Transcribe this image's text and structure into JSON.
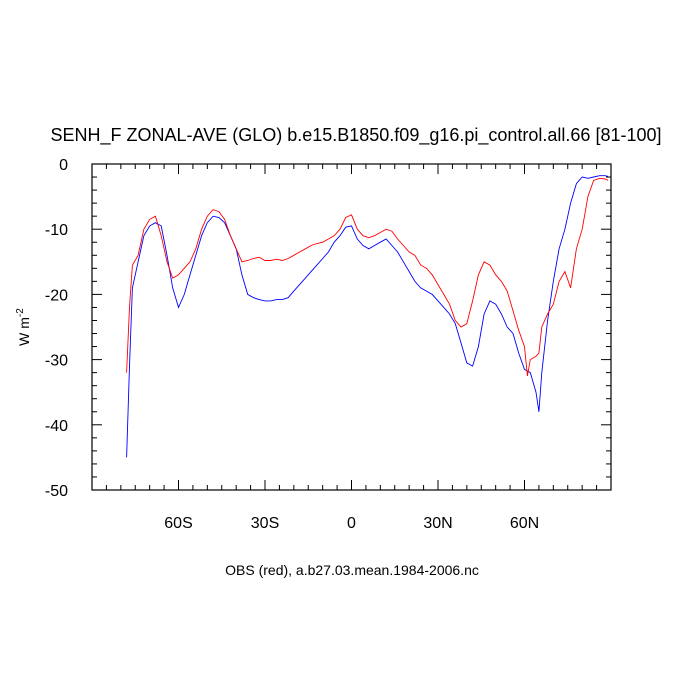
{
  "chart_data": {
    "type": "line",
    "title": "SENH_F ZONAL-AVE (GLO) b.e15.B1850.f09_g16.pi_control.all.66 [81-100]",
    "ylabel": "W m",
    "ylabel_superscript": "-2",
    "xlabel": "OBS (red), a.b27.03.mean.1984-2006.nc",
    "xlim": [
      -90,
      90
    ],
    "ylim": [
      -50,
      0
    ],
    "x_ticks": [
      {
        "value": -60,
        "label": "60S"
      },
      {
        "value": -30,
        "label": "30S"
      },
      {
        "value": 0,
        "label": "0"
      },
      {
        "value": 30,
        "label": "30N"
      },
      {
        "value": 60,
        "label": "60N"
      }
    ],
    "y_ticks": [
      {
        "value": 0,
        "label": "0"
      },
      {
        "value": -10,
        "label": "-10"
      },
      {
        "value": -20,
        "label": "-20"
      },
      {
        "value": -30,
        "label": "-30"
      },
      {
        "value": -40,
        "label": "-40"
      },
      {
        "value": -50,
        "label": "-50"
      }
    ],
    "grid": false,
    "series": [
      {
        "color": "#0000ff",
        "points": [
          [
            -78,
            -45
          ],
          [
            -77,
            -31
          ],
          [
            -76,
            -19
          ],
          [
            -74,
            -15
          ],
          [
            -72,
            -11
          ],
          [
            -70,
            -9.5
          ],
          [
            -68,
            -9
          ],
          [
            -66,
            -9.5
          ],
          [
            -64,
            -14
          ],
          [
            -62,
            -19
          ],
          [
            -60,
            -22
          ],
          [
            -58,
            -20
          ],
          [
            -56,
            -17
          ],
          [
            -54,
            -14
          ],
          [
            -52,
            -11
          ],
          [
            -50,
            -9
          ],
          [
            -48,
            -8
          ],
          [
            -46,
            -8.2
          ],
          [
            -44,
            -9
          ],
          [
            -42,
            -11
          ],
          [
            -40,
            -13
          ],
          [
            -38,
            -17
          ],
          [
            -36,
            -20
          ],
          [
            -34,
            -20.5
          ],
          [
            -32,
            -20.8
          ],
          [
            -30,
            -21
          ],
          [
            -28,
            -21
          ],
          [
            -26,
            -20.8
          ],
          [
            -24,
            -20.8
          ],
          [
            -22,
            -20.5
          ],
          [
            -20,
            -19.5
          ],
          [
            -18,
            -18.5
          ],
          [
            -16,
            -17.5
          ],
          [
            -14,
            -16.5
          ],
          [
            -12,
            -15.5
          ],
          [
            -10,
            -14.5
          ],
          [
            -8,
            -13.5
          ],
          [
            -6,
            -12
          ],
          [
            -4,
            -11
          ],
          [
            -2,
            -9.7
          ],
          [
            0,
            -9.5
          ],
          [
            2,
            -11.5
          ],
          [
            4,
            -12.5
          ],
          [
            6,
            -13
          ],
          [
            8,
            -12.5
          ],
          [
            10,
            -12
          ],
          [
            12,
            -11.5
          ],
          [
            14,
            -12.5
          ],
          [
            16,
            -13.5
          ],
          [
            18,
            -15
          ],
          [
            20,
            -16.5
          ],
          [
            22,
            -18
          ],
          [
            24,
            -19
          ],
          [
            26,
            -19.5
          ],
          [
            28,
            -20
          ],
          [
            30,
            -21
          ],
          [
            32,
            -22
          ],
          [
            34,
            -23
          ],
          [
            36,
            -24.5
          ],
          [
            38,
            -27.5
          ],
          [
            40,
            -30.5
          ],
          [
            42,
            -31
          ],
          [
            44,
            -28
          ],
          [
            46,
            -23
          ],
          [
            48,
            -21
          ],
          [
            50,
            -21.5
          ],
          [
            52,
            -23
          ],
          [
            54,
            -25
          ],
          [
            56,
            -26
          ],
          [
            58,
            -29
          ],
          [
            60,
            -31.5
          ],
          [
            62,
            -32
          ],
          [
            64,
            -35
          ],
          [
            65,
            -38
          ],
          [
            66,
            -32
          ],
          [
            68,
            -24
          ],
          [
            70,
            -18
          ],
          [
            72,
            -13
          ],
          [
            74,
            -10
          ],
          [
            76,
            -6
          ],
          [
            78,
            -3
          ],
          [
            80,
            -2
          ],
          [
            82,
            -2.2
          ],
          [
            84,
            -2
          ],
          [
            86,
            -1.8
          ],
          [
            88,
            -1.8
          ],
          [
            89,
            -1.9
          ]
        ]
      },
      {
        "color": "#ff0000",
        "points": [
          [
            -78,
            -32
          ],
          [
            -77,
            -22
          ],
          [
            -76,
            -15.5
          ],
          [
            -74,
            -14
          ],
          [
            -72,
            -10
          ],
          [
            -70,
            -8.5
          ],
          [
            -68,
            -8
          ],
          [
            -66,
            -11
          ],
          [
            -64,
            -15
          ],
          [
            -62,
            -17.5
          ],
          [
            -60,
            -17
          ],
          [
            -58,
            -16
          ],
          [
            -56,
            -15
          ],
          [
            -54,
            -13
          ],
          [
            -52,
            -10
          ],
          [
            -50,
            -8
          ],
          [
            -48,
            -7
          ],
          [
            -46,
            -7.3
          ],
          [
            -44,
            -8.5
          ],
          [
            -42,
            -11
          ],
          [
            -40,
            -13
          ],
          [
            -38,
            -15
          ],
          [
            -36,
            -14.8
          ],
          [
            -34,
            -14.5
          ],
          [
            -32,
            -14.3
          ],
          [
            -30,
            -14.8
          ],
          [
            -28,
            -14.8
          ],
          [
            -26,
            -14.6
          ],
          [
            -24,
            -14.8
          ],
          [
            -22,
            -14.5
          ],
          [
            -20,
            -14
          ],
          [
            -18,
            -13.5
          ],
          [
            -16,
            -13
          ],
          [
            -14,
            -12.5
          ],
          [
            -12,
            -12.2
          ],
          [
            -10,
            -12
          ],
          [
            -8,
            -11.5
          ],
          [
            -6,
            -11
          ],
          [
            -4,
            -10
          ],
          [
            -2,
            -8.2
          ],
          [
            0,
            -7.8
          ],
          [
            2,
            -10
          ],
          [
            4,
            -11
          ],
          [
            6,
            -11.3
          ],
          [
            8,
            -11
          ],
          [
            10,
            -10.5
          ],
          [
            12,
            -10
          ],
          [
            14,
            -10.3
          ],
          [
            16,
            -11.5
          ],
          [
            18,
            -12.5
          ],
          [
            20,
            -13.5
          ],
          [
            22,
            -14
          ],
          [
            24,
            -15.5
          ],
          [
            26,
            -16
          ],
          [
            28,
            -17
          ],
          [
            30,
            -18.5
          ],
          [
            32,
            -20
          ],
          [
            34,
            -21.5
          ],
          [
            36,
            -24
          ],
          [
            38,
            -25
          ],
          [
            40,
            -24.5
          ],
          [
            42,
            -21
          ],
          [
            44,
            -17
          ],
          [
            46,
            -15
          ],
          [
            48,
            -15.5
          ],
          [
            50,
            -17
          ],
          [
            52,
            -18
          ],
          [
            54,
            -19.5
          ],
          [
            56,
            -22.5
          ],
          [
            58,
            -25.5
          ],
          [
            60,
            -28
          ],
          [
            61,
            -32.5
          ],
          [
            62,
            -30
          ],
          [
            64,
            -29.5
          ],
          [
            65,
            -29
          ],
          [
            66,
            -25
          ],
          [
            68,
            -23
          ],
          [
            70,
            -21.5
          ],
          [
            72,
            -18
          ],
          [
            74,
            -16.5
          ],
          [
            76,
            -19
          ],
          [
            78,
            -13
          ],
          [
            80,
            -10
          ],
          [
            82,
            -5
          ],
          [
            84,
            -2.5
          ],
          [
            86,
            -2.2
          ],
          [
            88,
            -2.3
          ],
          [
            89,
            -2.5
          ]
        ]
      }
    ]
  }
}
